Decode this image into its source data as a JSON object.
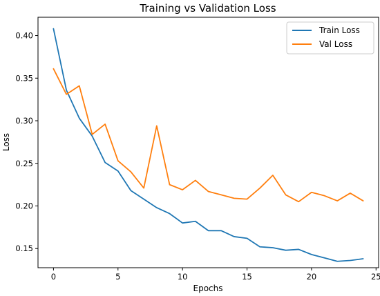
{
  "chart_data": {
    "type": "line",
    "title": "Training vs Validation Loss",
    "xlabel": "Epochs",
    "ylabel": "Loss",
    "xlim": [
      -1.2,
      25.2
    ],
    "ylim": [
      0.1275,
      0.4215
    ],
    "x_ticks": [
      0,
      5,
      10,
      15,
      20,
      25
    ],
    "y_ticks": [
      0.15,
      0.2,
      0.25,
      0.3,
      0.35,
      0.4
    ],
    "x_tick_labels": [
      "0",
      "5",
      "10",
      "15",
      "20",
      "25"
    ],
    "y_tick_labels": [
      "0.15",
      "0.20",
      "0.25",
      "0.30",
      "0.35",
      "0.40"
    ],
    "grid": false,
    "legend_position": "top-right",
    "x": [
      0,
      1,
      2,
      3,
      4,
      5,
      6,
      7,
      8,
      9,
      10,
      11,
      12,
      13,
      14,
      15,
      16,
      17,
      18,
      19,
      20,
      21,
      22,
      23,
      24
    ],
    "series": [
      {
        "name": "Train Loss",
        "color": "#1f77b4",
        "values": [
          0.408,
          0.336,
          0.303,
          0.282,
          0.251,
          0.241,
          0.218,
          0.208,
          0.198,
          0.191,
          0.18,
          0.182,
          0.171,
          0.171,
          0.164,
          0.162,
          0.152,
          0.151,
          0.148,
          0.149,
          0.143,
          0.139,
          0.135,
          0.136,
          0.138
        ]
      },
      {
        "name": "Val Loss",
        "color": "#ff7f0e",
        "values": [
          0.361,
          0.331,
          0.341,
          0.284,
          0.296,
          0.253,
          0.24,
          0.221,
          0.294,
          0.225,
          0.219,
          0.23,
          0.217,
          0.213,
          0.209,
          0.208,
          0.221,
          0.236,
          0.213,
          0.205,
          0.216,
          0.212,
          0.206,
          0.215,
          0.206
        ]
      }
    ]
  }
}
